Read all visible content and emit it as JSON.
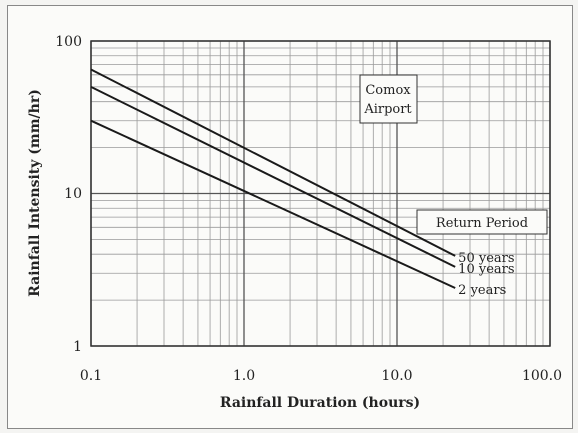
{
  "chart_data": {
    "type": "line",
    "xlabel": "Rainfall Duration (hours)",
    "ylabel": "Rainfall Intensity (mm/hr)",
    "xscale": "log",
    "yscale": "log",
    "xlim": [
      0.1,
      100.0
    ],
    "ylim": [
      1,
      100
    ],
    "x_tick_labels": [
      "0.1",
      "1.0",
      "10.0",
      "100.0"
    ],
    "y_tick_labels": [
      "1",
      "10",
      "100"
    ],
    "grid": true,
    "location_label": [
      "Comox",
      "Airport"
    ],
    "legend_title": "Return Period",
    "series": [
      {
        "name": "50 years",
        "x": [
          0.1,
          24
        ],
        "y": [
          65,
          3.9
        ]
      },
      {
        "name": "10 years",
        "x": [
          0.1,
          24
        ],
        "y": [
          50,
          3.3
        ]
      },
      {
        "name": "2 years",
        "x": [
          0.1,
          24
        ],
        "y": [
          30,
          2.4
        ]
      }
    ],
    "colors": {
      "lines": "#1a1a1a",
      "grid": "#9a9a9a",
      "frame": "#333333"
    }
  }
}
